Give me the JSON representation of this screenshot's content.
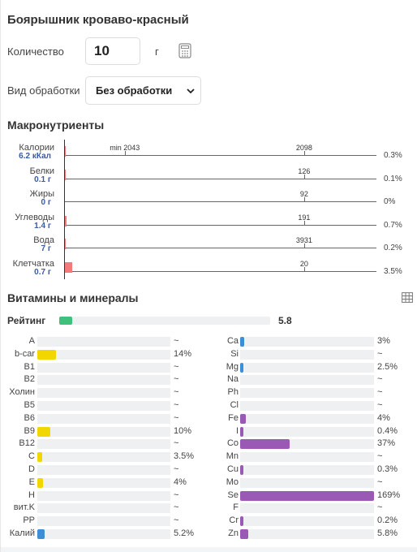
{
  "product": {
    "title": "Боярышник кроваво-красный"
  },
  "quantity": {
    "label": "Количество",
    "value": "10",
    "unit": "г"
  },
  "processing": {
    "label": "Вид обработки",
    "selected": "Без обработки"
  },
  "macros": {
    "heading": "Макронутриенты",
    "items": [
      {
        "name": "Калории",
        "value": "6.2 кКал",
        "pct_label": "0.3%",
        "fill": 0.003,
        "ticks": [
          {
            "label": "min 2043",
            "pos": 0.2
          },
          {
            "label": "2098",
            "pos": 0.8
          }
        ]
      },
      {
        "name": "Белки",
        "value": "0.1 г",
        "pct_label": "0.1%",
        "fill": 0.001,
        "ticks": [
          {
            "label": "126",
            "pos": 0.8
          }
        ]
      },
      {
        "name": "Жиры",
        "value": "0 г",
        "pct_label": "0%",
        "fill": 0,
        "ticks": [
          {
            "label": "92",
            "pos": 0.8
          }
        ]
      },
      {
        "name": "Углеводы",
        "value": "1.4 г",
        "pct_label": "0.7%",
        "fill": 0.007,
        "ticks": [
          {
            "label": "191",
            "pos": 0.8
          }
        ]
      },
      {
        "name": "Вода",
        "value": "7 г",
        "pct_label": "0.2%",
        "fill": 0.002,
        "ticks": [
          {
            "label": "3931",
            "pos": 0.8
          }
        ]
      },
      {
        "name": "Клетчатка",
        "value": "0.7 г",
        "pct_label": "3.5%",
        "fill": 0.035,
        "ticks": [
          {
            "label": "20",
            "pos": 0.8
          }
        ]
      }
    ]
  },
  "vitamins": {
    "heading": "Витамины и минералы",
    "rating": {
      "label": "Рейтинг",
      "value": "5.8",
      "fill": 0.06
    },
    "colors": {
      "vitamin": "#f2d600",
      "mineral": "#9b59b6",
      "blue": "#3b8fd8"
    },
    "left": [
      {
        "name": "A",
        "pct": "~",
        "fill": 0,
        "color": ""
      },
      {
        "name": "b-car",
        "pct": "14%",
        "fill": 0.14,
        "color": "#f2d600"
      },
      {
        "name": "B1",
        "pct": "~",
        "fill": 0,
        "color": ""
      },
      {
        "name": "B2",
        "pct": "~",
        "fill": 0,
        "color": ""
      },
      {
        "name": "Холин",
        "pct": "~",
        "fill": 0,
        "color": ""
      },
      {
        "name": "B5",
        "pct": "~",
        "fill": 0,
        "color": ""
      },
      {
        "name": "B6",
        "pct": "~",
        "fill": 0,
        "color": ""
      },
      {
        "name": "B9",
        "pct": "10%",
        "fill": 0.1,
        "color": "#f2d600"
      },
      {
        "name": "B12",
        "pct": "~",
        "fill": 0,
        "color": ""
      },
      {
        "name": "C",
        "pct": "3.5%",
        "fill": 0.035,
        "color": "#f2d600"
      },
      {
        "name": "D",
        "pct": "~",
        "fill": 0,
        "color": ""
      },
      {
        "name": "E",
        "pct": "4%",
        "fill": 0.04,
        "color": "#f2d600"
      },
      {
        "name": "H",
        "pct": "~",
        "fill": 0,
        "color": ""
      },
      {
        "name": "вит.K",
        "pct": "~",
        "fill": 0,
        "color": ""
      },
      {
        "name": "PP",
        "pct": "~",
        "fill": 0,
        "color": ""
      },
      {
        "name": "Калий",
        "pct": "5.2%",
        "fill": 0.052,
        "color": "#3b8fd8"
      }
    ],
    "right": [
      {
        "name": "Ca",
        "pct": "3%",
        "fill": 0.03,
        "color": "#3b8fd8"
      },
      {
        "name": "Si",
        "pct": "~",
        "fill": 0,
        "color": ""
      },
      {
        "name": "Mg",
        "pct": "2.5%",
        "fill": 0.025,
        "color": "#3b8fd8"
      },
      {
        "name": "Na",
        "pct": "~",
        "fill": 0,
        "color": ""
      },
      {
        "name": "Ph",
        "pct": "~",
        "fill": 0,
        "color": ""
      },
      {
        "name": "Cl",
        "pct": "~",
        "fill": 0,
        "color": ""
      },
      {
        "name": "Fe",
        "pct": "4%",
        "fill": 0.04,
        "color": "#9b59b6"
      },
      {
        "name": "I",
        "pct": "0.4%",
        "fill": 0.004,
        "color": "#9b59b6"
      },
      {
        "name": "Co",
        "pct": "37%",
        "fill": 0.37,
        "color": "#9b59b6"
      },
      {
        "name": "Mn",
        "pct": "~",
        "fill": 0,
        "color": ""
      },
      {
        "name": "Cu",
        "pct": "0.3%",
        "fill": 0.003,
        "color": "#9b59b6"
      },
      {
        "name": "Mo",
        "pct": "~",
        "fill": 0,
        "color": ""
      },
      {
        "name": "Se",
        "pct": "169%",
        "fill": 1.0,
        "color": "#9b59b6"
      },
      {
        "name": "F",
        "pct": "~",
        "fill": 0,
        "color": ""
      },
      {
        "name": "Cr",
        "pct": "0.2%",
        "fill": 0.002,
        "color": "#9b59b6"
      },
      {
        "name": "Zn",
        "pct": "5.8%",
        "fill": 0.058,
        "color": "#9b59b6"
      }
    ]
  },
  "icons": {
    "calculator": "calculator-icon",
    "chevron": "chevron-down-icon",
    "table": "table-icon"
  }
}
